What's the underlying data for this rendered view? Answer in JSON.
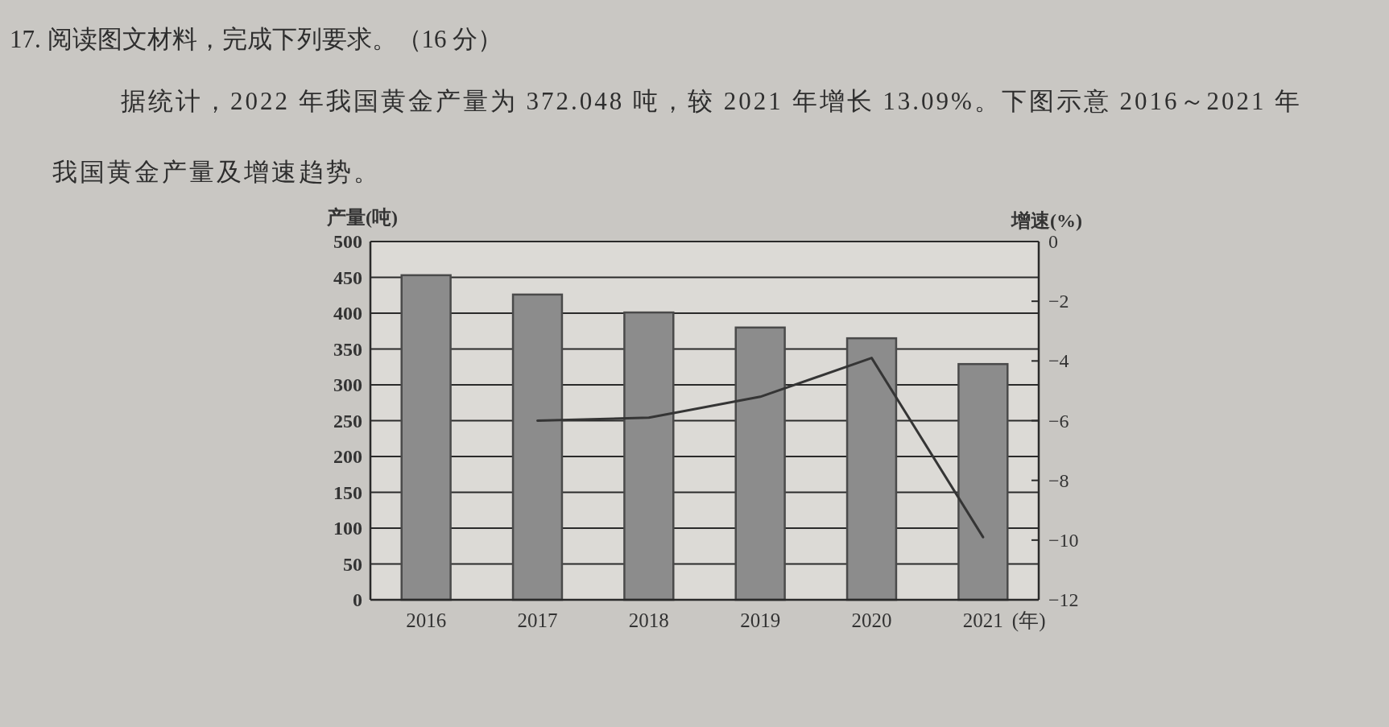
{
  "chart_data": {
    "type": "bar",
    "title": "17. 阅读图文材料，完成下列要求。（16 分）",
    "subtitle": "据统计，2022 年我国黄金产量为 372.048 吨，较 2021 年增长 13.09%。下图示意 2016～2021 年我国黄金产量及增速趋势。",
    "categories": [
      "2016",
      "2017",
      "2018",
      "2019",
      "2020",
      "2021"
    ],
    "xlabel": "(年)",
    "ylabel": "产量(吨)",
    "y2label": "增速(%)",
    "series": [
      {
        "type": "bar",
        "color": "#8c8c8c",
        "values": [
          453,
          426,
          401,
          380,
          365,
          329
        ]
      },
      {
        "type": "line",
        "axis": "y2",
        "color": "#353535",
        "values": [
          null,
          -6.0,
          -5.9,
          -5.2,
          -3.9,
          -9.9
        ]
      }
    ],
    "ylim": [
      0,
      500
    ],
    "yticks": [
      0,
      50,
      100,
      150,
      200,
      250,
      300,
      350,
      400,
      450,
      500
    ],
    "y2lim": [
      -12,
      0
    ],
    "y2ticks": [
      -12,
      -10,
      -8,
      -6,
      -4,
      -2,
      0
    ],
    "grid": "y"
  }
}
